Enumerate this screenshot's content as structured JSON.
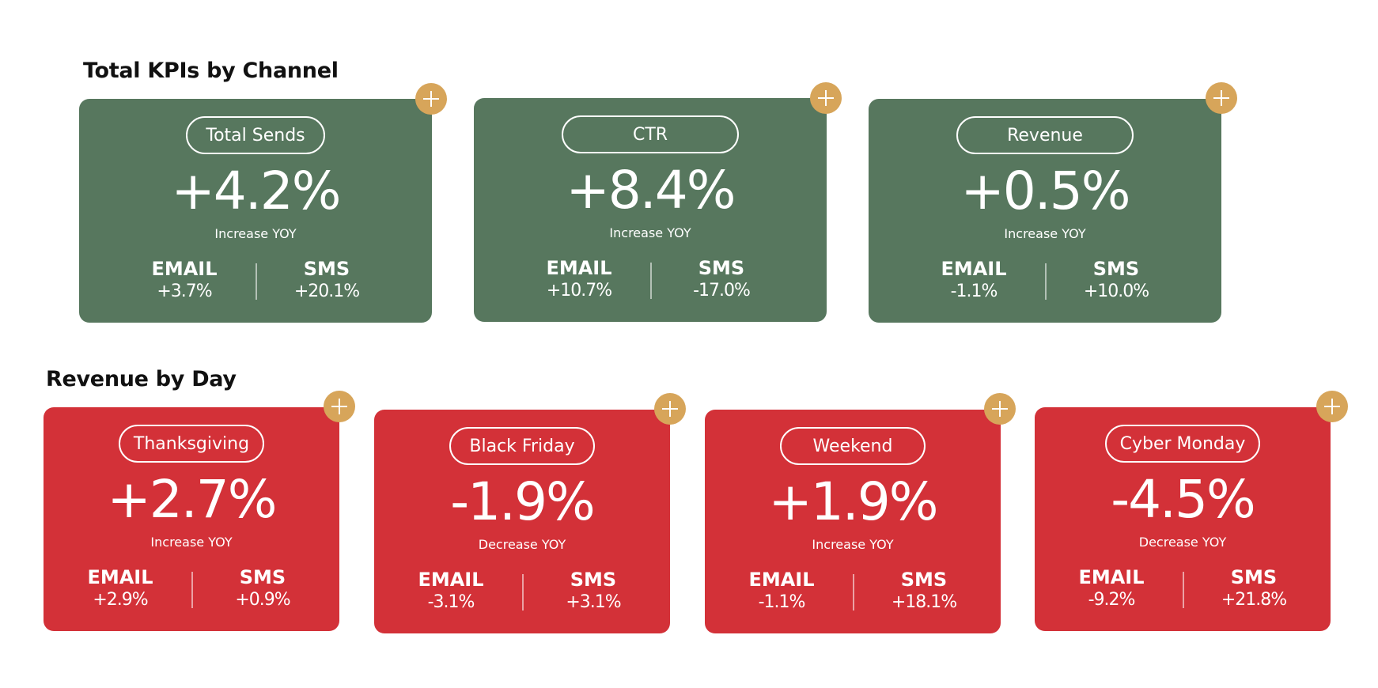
{
  "sections": [
    {
      "title": "Total KPIs by Channel",
      "cards": [
        {
          "label": "Total Sends",
          "value": "+4.2%",
          "caption": "Increase YOY",
          "email_label": "EMAIL",
          "email_value": "+3.7%",
          "sms_label": "SMS",
          "sms_value": "+20.1%"
        },
        {
          "label": "CTR",
          "value": "+8.4%",
          "caption": "Increase YOY",
          "email_label": "EMAIL",
          "email_value": "+10.7%",
          "sms_label": "SMS",
          "sms_value": "-17.0%"
        },
        {
          "label": "Revenue",
          "value": "+0.5%",
          "caption": "Increase YOY",
          "email_label": "EMAIL",
          "email_value": "-1.1%",
          "sms_label": "SMS",
          "sms_value": "+10.0%"
        }
      ]
    },
    {
      "title": "Revenue by Day",
      "cards": [
        {
          "label": "Thanksgiving",
          "value": "+2.7%",
          "caption": "Increase YOY",
          "email_label": "EMAIL",
          "email_value": "+2.9%",
          "sms_label": "SMS",
          "sms_value": "+0.9%"
        },
        {
          "label": "Black Friday",
          "value": "-1.9%",
          "caption": "Decrease YOY",
          "email_label": "EMAIL",
          "email_value": "-3.1%",
          "sms_label": "SMS",
          "sms_value": "+3.1%"
        },
        {
          "label": "Weekend",
          "value": "+1.9%",
          "caption": "Increase YOY",
          "email_label": "EMAIL",
          "email_value": "-1.1%",
          "sms_label": "SMS",
          "sms_value": "+18.1%"
        },
        {
          "label": "Cyber Monday",
          "value": "-4.5%",
          "caption": "Decrease YOY",
          "email_label": "EMAIL",
          "email_value": "-9.2%",
          "sms_label": "SMS",
          "sms_value": "+21.8%"
        }
      ]
    }
  ],
  "colors": {
    "kpi_card": "#57775e",
    "day_card": "#d33138",
    "add_button": "#d7a55a",
    "text": "#ffffff",
    "heading": "#111111"
  },
  "icons": {
    "add": "plus-icon"
  }
}
